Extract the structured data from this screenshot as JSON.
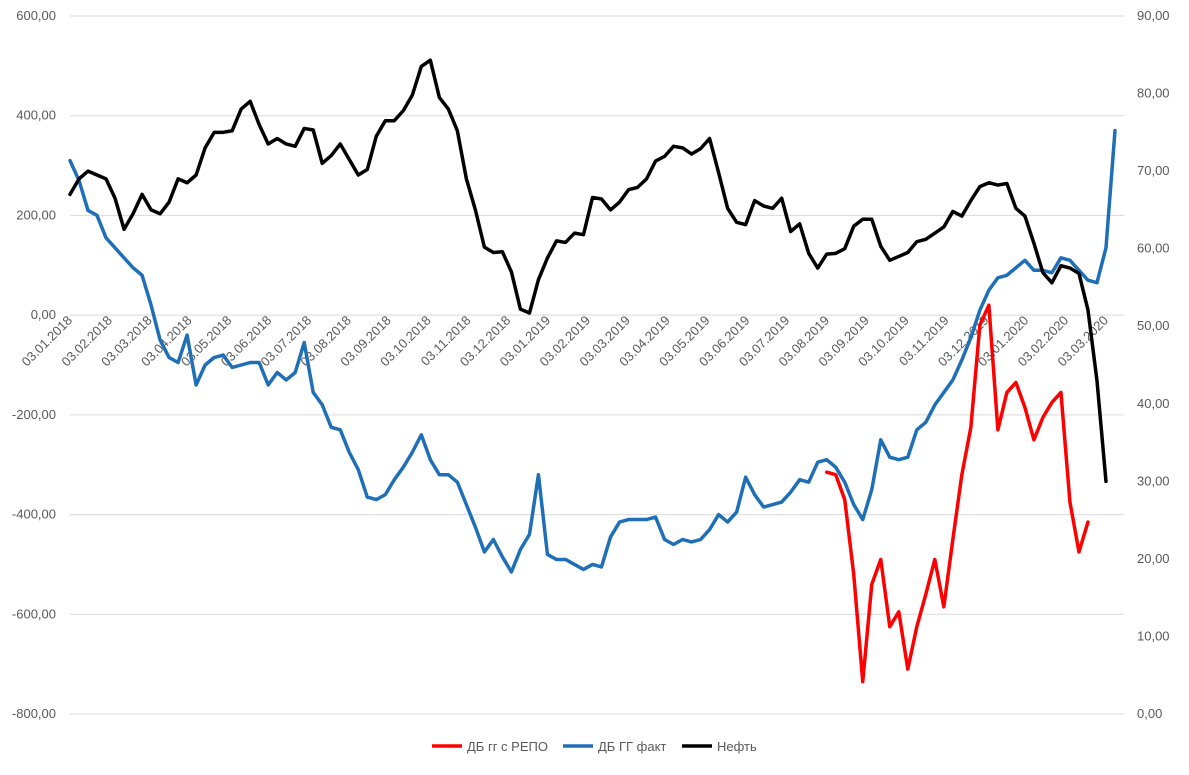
{
  "chart_data": {
    "type": "line",
    "title": "",
    "colors": {
      "repo": "#ff0000",
      "fact": "#1f6fb6",
      "oil": "#000000",
      "grid": "#d9d9d9",
      "text": "#595959"
    },
    "left_axis": {
      "ylim": [
        -800,
        600
      ],
      "ticks": [
        "600,00",
        "400,00",
        "200,00",
        "0,00",
        "-200,00",
        "-400,00",
        "-600,00",
        "-800,00"
      ]
    },
    "right_axis": {
      "ylim": [
        0,
        90
      ],
      "ticks": [
        "90,00",
        "80,00",
        "70,00",
        "60,00",
        "50,00",
        "40,00",
        "30,00",
        "20,00",
        "10,00",
        "0,00"
      ]
    },
    "x_ticks": [
      "03.01.2018",
      "03.02.2018",
      "03.03.2018",
      "03.04.2018",
      "03.05.2018",
      "03.06.2018",
      "03.07.2018",
      "03.08.2018",
      "03.09.2018",
      "03.10.2018",
      "03.11.2018",
      "03.12.2018",
      "03.01.2019",
      "03.02.2019",
      "03.03.2019",
      "03.04.2019",
      "03.05.2019",
      "03.06.2019",
      "03.07.2019",
      "03.08.2019",
      "03.09.2019",
      "03.10.2019",
      "03.11.2019",
      "03.12.2019",
      "03.01.2020",
      "03.02.2020",
      "03.03.2020"
    ],
    "legend_position": "bottom",
    "series": [
      {
        "name": "ДБ гг с РЕПО",
        "axis": "left",
        "start_index": 84,
        "values": [
          -315,
          -320,
          -370,
          -520,
          -735,
          -540,
          -490,
          -625,
          -595,
          -710,
          -625,
          -560,
          -490,
          -585,
          -450,
          -320,
          -225,
          -20,
          20,
          -230,
          -155,
          -135,
          -185,
          -250,
          -205,
          -175,
          -155,
          -375,
          -475,
          -415
        ]
      },
      {
        "name": "ДБ ГГ факт",
        "axis": "left",
        "start_index": 0,
        "values": [
          310,
          270,
          210,
          200,
          155,
          135,
          115,
          95,
          80,
          20,
          -50,
          -85,
          -95,
          -40,
          -140,
          -100,
          -85,
          -80,
          -105,
          -100,
          -95,
          -95,
          -140,
          -115,
          -130,
          -115,
          -55,
          -155,
          -180,
          -225,
          -230,
          -275,
          -310,
          -365,
          -370,
          -360,
          -330,
          -305,
          -275,
          -240,
          -290,
          -320,
          -320,
          -335,
          -380,
          -425,
          -475,
          -450,
          -485,
          -515,
          -470,
          -440,
          -320,
          -480,
          -490,
          -490,
          -500,
          -510,
          -500,
          -505,
          -445,
          -415,
          -410,
          -410,
          -410,
          -405,
          -450,
          -460,
          -450,
          -455,
          -450,
          -430,
          -400,
          -415,
          -395,
          -325,
          -360,
          -385,
          -380,
          -375,
          -355,
          -330,
          -335,
          -295,
          -290,
          -305,
          -335,
          -380,
          -410,
          -350,
          -250,
          -285,
          -290,
          -285,
          -230,
          -215,
          -180,
          -155,
          -130,
          -90,
          -45,
          10,
          50,
          75,
          80,
          95,
          110,
          90,
          90,
          85,
          115,
          110,
          90,
          70,
          65,
          135,
          370
        ]
      },
      {
        "name": "Нефть",
        "axis": "right",
        "start_index": 0,
        "values": [
          67,
          69,
          70,
          69.5,
          69,
          66.5,
          62.5,
          64.5,
          67,
          65,
          64.5,
          66,
          69,
          68.5,
          69.5,
          73,
          75,
          75,
          75.2,
          78,
          79,
          76,
          73.5,
          74.2,
          73.5,
          73.2,
          75.5,
          75.3,
          71,
          72,
          73.5,
          71.5,
          69.5,
          70.2,
          74.5,
          76.5,
          76.5,
          77.8,
          79.8,
          83.5,
          84.3,
          79.5,
          78,
          75.2,
          69,
          65,
          60.2,
          59.5,
          59.6,
          57,
          52.2,
          51.7,
          56,
          58.8,
          61,
          60.8,
          62,
          61.8,
          66.6,
          66.4,
          65,
          66,
          67.6,
          67.9,
          69,
          71.3,
          71.9,
          73.2,
          73,
          72.2,
          72.9,
          74.2,
          69.8,
          65.2,
          63.4,
          63.1,
          66.2,
          65.5,
          65.2,
          66.5,
          62.2,
          63.2,
          59.4,
          57.5,
          59.3,
          59.4,
          60,
          62.9,
          63.8,
          63.8,
          60.3,
          58.5,
          59,
          59.5,
          60.9,
          61.2,
          62,
          62.8,
          64.8,
          64.2,
          66.2,
          68,
          68.5,
          68.2,
          68.4,
          65.2,
          64.2,
          60.7,
          56.9,
          55.6,
          57.8,
          57.5,
          56.8,
          52.1,
          43,
          30
        ]
      }
    ]
  }
}
